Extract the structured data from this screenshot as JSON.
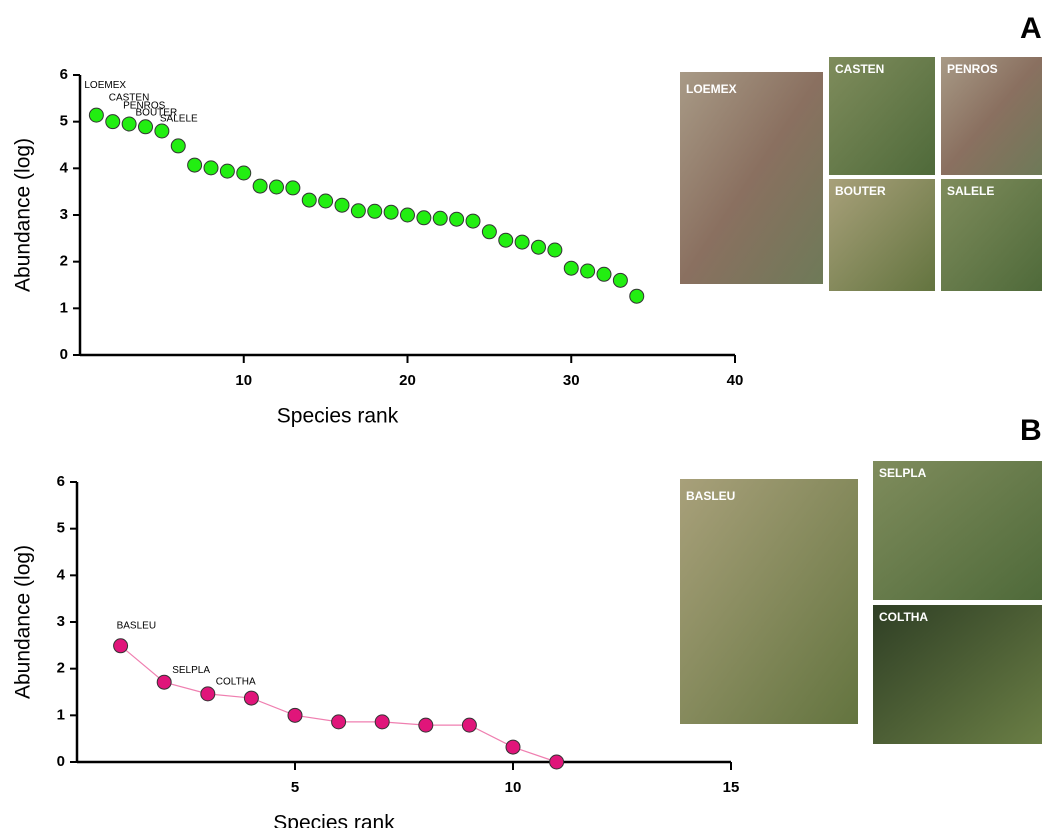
{
  "chart_data": [
    {
      "type": "scatter",
      "panel": "A",
      "xlabel": "Species rank",
      "ylabel": "Abundance (log)",
      "x": [
        1,
        2,
        3,
        4,
        5,
        6,
        7,
        8,
        9,
        10,
        11,
        12,
        13,
        14,
        15,
        16,
        17,
        18,
        19,
        20,
        21,
        22,
        23,
        24,
        25,
        26,
        27,
        28,
        29,
        30,
        31,
        32,
        33,
        34
      ],
      "values": [
        5.14,
        5.0,
        4.95,
        4.89,
        4.8,
        4.48,
        4.07,
        4.01,
        3.94,
        3.9,
        3.62,
        3.6,
        3.58,
        3.32,
        3.3,
        3.21,
        3.09,
        3.08,
        3.06,
        3.0,
        2.94,
        2.93,
        2.91,
        2.87,
        2.64,
        2.46,
        2.42,
        2.31,
        2.25,
        1.86,
        1.8,
        1.73,
        1.6,
        1.26
      ],
      "point_labels": [
        "LOEMEX",
        "CASTEN",
        "PENROS",
        "BOUTER",
        "SALELE",
        null,
        null,
        null,
        null,
        null,
        null,
        null,
        null,
        null,
        null,
        null,
        null,
        null,
        null,
        null,
        null,
        null,
        null,
        null,
        null,
        null,
        null,
        null,
        null,
        null,
        null,
        null,
        null,
        null
      ],
      "color": "#22ee11",
      "xlim": [
        0,
        40
      ],
      "xticks": [
        10,
        20,
        30,
        40
      ],
      "ylim": [
        0,
        6
      ],
      "yticks": [
        0,
        1,
        2,
        3,
        4,
        5,
        6
      ],
      "photos": [
        "LOEMEX",
        "CASTEN",
        "PENROS",
        "BOUTER",
        "SALELE"
      ]
    },
    {
      "type": "line",
      "panel": "B",
      "xlabel": "Species rank",
      "ylabel": "Abundance (log)",
      "x": [
        1,
        2,
        3,
        4,
        5,
        6,
        7,
        8,
        9,
        10,
        11
      ],
      "values": [
        2.49,
        1.71,
        1.46,
        1.37,
        1.0,
        0.86,
        0.86,
        0.79,
        0.79,
        0.32,
        0.0
      ],
      "point_labels": [
        "BASLEU",
        "SELPLA",
        "COLTHA",
        null,
        null,
        null,
        null,
        null,
        null,
        null,
        null
      ],
      "color": "#e0157a",
      "line_color": "#ef7fb0",
      "xlim": [
        0,
        15
      ],
      "xticks": [
        5,
        10,
        15
      ],
      "ylim": [
        0,
        6
      ],
      "yticks": [
        0,
        1,
        2,
        3,
        4,
        5,
        6
      ],
      "photos": [
        "BASLEU",
        "SELPLA",
        "COLTHA"
      ]
    }
  ]
}
